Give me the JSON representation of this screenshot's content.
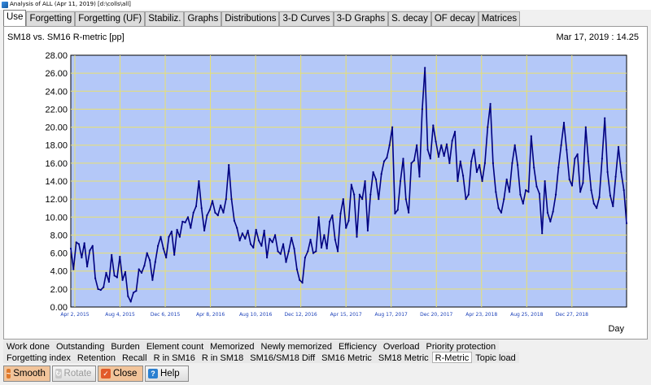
{
  "window": {
    "title": "Analysis of ALL (Apr 11, 2019) [d:\\colls\\all]"
  },
  "tabs": [
    "Use",
    "Forgetting",
    "Forgetting (UF)",
    "Stabiliz.",
    "Graphs",
    "Distributions",
    "3-D Curves",
    "3-D Graphs",
    "S. decay",
    "OF decay",
    "Matrices"
  ],
  "active_tab": 0,
  "plot": {
    "title": "SM18 vs. SM16 R-metric [pp]",
    "date": "Mar 17, 2019 : 14.25",
    "xlabel": "Day"
  },
  "chart_data": {
    "type": "line",
    "title": "SM18 vs. SM16 R-metric [pp]",
    "xlabel": "Day",
    "ylabel": "",
    "ylim": [
      0,
      28
    ],
    "yticks": [
      "0.00",
      "2.00",
      "4.00",
      "6.00",
      "8.00",
      "10.00",
      "12.00",
      "14.00",
      "16.00",
      "18.00",
      "20.00",
      "22.00",
      "24.00",
      "26.00",
      "28.00"
    ],
    "xticks": [
      "Apr 2, 2015",
      "Aug 4, 2015",
      "Dec 6, 2015",
      "Apr 8, 2016",
      "Aug 10, 2016",
      "Dec 12, 2016",
      "Apr 15, 2017",
      "Aug 17, 2017",
      "Dec 20, 2017",
      "Apr 23, 2018",
      "Aug 25, 2018",
      "Dec 27, 2018"
    ],
    "grid": true,
    "series": [
      {
        "color": "#000080",
        "values": [
          6.5,
          4.2,
          7.2,
          7.0,
          5.5,
          7.1,
          4.5,
          6.3,
          6.8,
          3.2,
          2.0,
          1.9,
          2.2,
          3.8,
          2.8,
          5.8,
          3.5,
          3.3,
          5.6,
          3.0,
          3.9,
          1.2,
          0.6,
          1.6,
          1.8,
          4.2,
          3.8,
          4.6,
          6.0,
          5.2,
          3.0,
          5.0,
          6.8,
          7.8,
          6.5,
          5.5,
          7.8,
          8.4,
          5.8,
          8.6,
          7.8,
          9.5,
          9.4,
          10.0,
          8.8,
          10.5,
          11.2,
          14.0,
          11.0,
          8.5,
          10.2,
          10.8,
          11.8,
          10.5,
          10.2,
          11.3,
          10.5,
          12.0,
          15.8,
          12.0,
          9.6,
          8.8,
          7.4,
          8.2,
          7.6,
          8.5,
          7.0,
          6.6,
          8.6,
          7.4,
          6.8,
          8.5,
          5.5,
          7.6,
          7.2,
          8.0,
          6.2,
          5.9,
          7.0,
          5.0,
          6.2,
          7.7,
          6.5,
          4.2,
          3.0,
          2.7,
          5.5,
          6.2,
          7.5,
          6.0,
          6.2,
          10.0,
          6.6,
          8.0,
          6.5,
          9.5,
          10.2,
          7.5,
          6.2,
          10.4,
          12.0,
          8.8,
          9.6,
          13.6,
          12.5,
          7.8,
          12.5,
          12.0,
          14.0,
          8.5,
          12.5,
          15.0,
          14.2,
          12.0,
          14.8,
          16.2,
          16.6,
          18.0,
          20.0,
          10.4,
          10.8,
          14.0,
          16.5,
          12.0,
          10.5,
          16.0,
          16.3,
          18.0,
          14.5,
          22.0,
          26.6,
          17.5,
          16.5,
          20.2,
          18.4,
          16.7,
          18.0,
          16.8,
          18.1,
          16.0,
          18.5,
          19.5,
          14.0,
          16.2,
          14.6,
          12.0,
          12.5,
          16.2,
          17.5,
          15.0,
          15.8,
          14.0,
          16.0,
          20.0,
          22.6,
          16.0,
          12.8,
          11.0,
          10.5,
          12.0,
          14.2,
          12.8,
          16.0,
          18.0,
          15.8,
          12.5,
          11.5,
          13.0,
          12.8,
          19.0,
          15.5,
          13.4,
          12.6,
          8.2,
          14.0,
          10.5,
          9.5,
          10.6,
          12.5,
          15.5,
          18.0,
          20.5,
          17.5,
          14.2,
          13.5,
          16.5,
          17.0,
          12.8,
          13.8,
          20.0,
          16.2,
          13.0,
          11.5,
          11.0,
          12.2,
          16.5,
          21.0,
          15.0,
          12.4,
          11.2,
          14.5,
          17.8,
          15.0,
          13.0,
          9.3
        ]
      }
    ]
  },
  "subtabs_row1": [
    "Work done",
    "Outstanding",
    "Burden",
    "Element count",
    "Memorized",
    "Newly memorized",
    "Efficiency",
    "Overload",
    "Priority protection"
  ],
  "subtabs_row2": [
    "Forgetting index",
    "Retention",
    "Recall",
    "R in SM16",
    "R in SM18",
    "SM16/SM18 Diff",
    "SM16 Metric",
    "SM18 Metric",
    "R-Metric",
    "Topic load"
  ],
  "active_subtab": "R-Metric",
  "buttons": {
    "smooth": "Smooth",
    "rotate": "Rotate",
    "close": "Close",
    "help": "Help"
  }
}
